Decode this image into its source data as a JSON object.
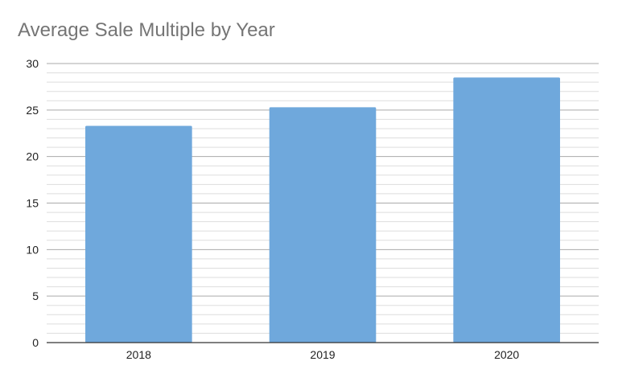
{
  "chart_data": {
    "type": "bar",
    "title": "Average Sale Multiple by Year",
    "xlabel": "",
    "ylabel": "",
    "categories": [
      "2018",
      "2019",
      "2020"
    ],
    "series": [
      {
        "values": [
          23.3,
          25.3,
          28.5
        ]
      }
    ],
    "ylim": [
      0,
      30
    ],
    "yticks": [
      0,
      5,
      10,
      15,
      20,
      25,
      30
    ],
    "minor_gridlines": true,
    "grid": true,
    "legend": "none",
    "colors": {
      "bar": "#6fa8dc",
      "major_grid": "#aaaaaa",
      "minor_grid": "#dddddd",
      "axis": "#333333"
    }
  }
}
